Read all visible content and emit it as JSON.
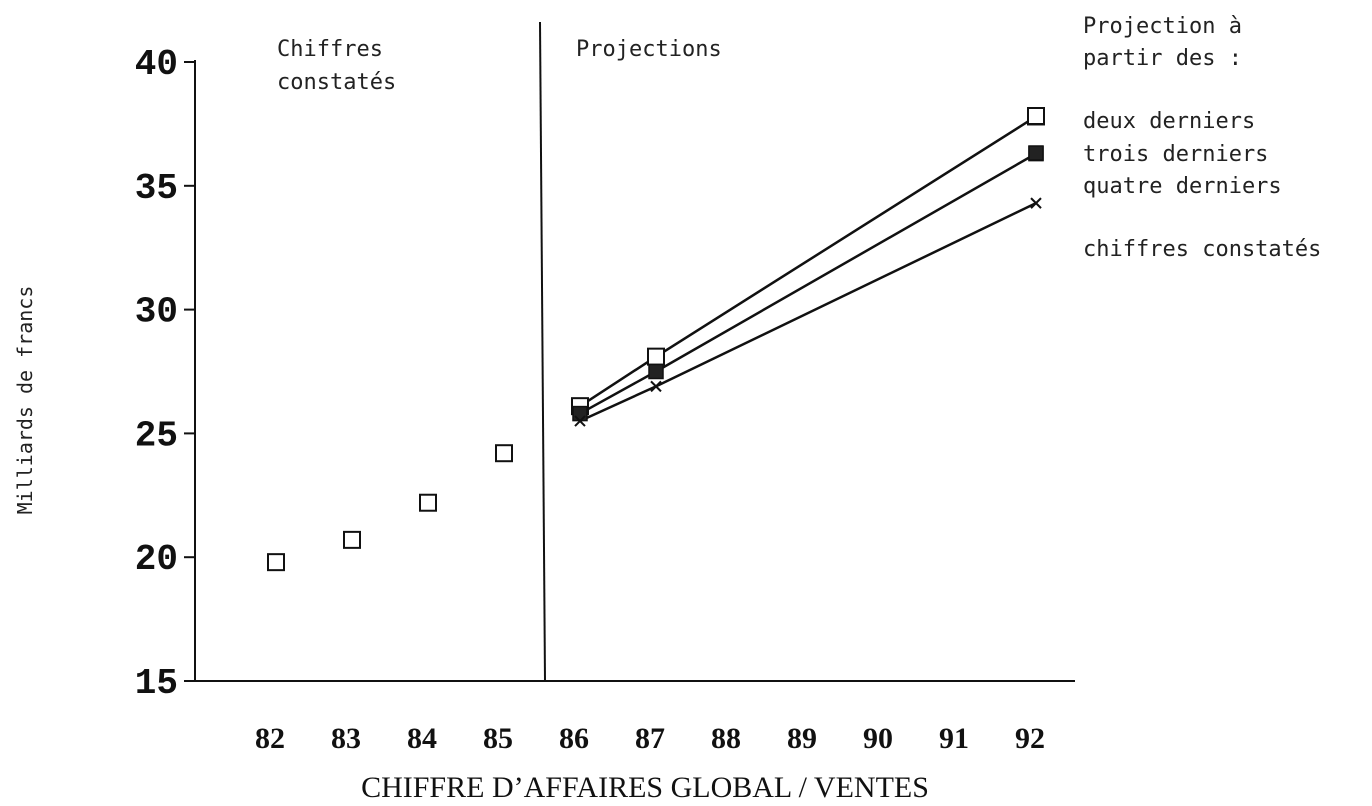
{
  "chart_data": {
    "type": "line",
    "xlabel": "CHIFFRE D’AFFAIRES GLOBAL / VENTES",
    "ylabel": "Milliards de francs",
    "ylim": [
      15,
      40
    ],
    "yticks": [
      "40",
      "35",
      "30",
      "25",
      "20",
      "15"
    ],
    "xticks": [
      "82",
      "83",
      "84",
      "85",
      "86",
      "87",
      "88",
      "89",
      "90",
      "91",
      "92"
    ],
    "grid": false,
    "region_labels": {
      "observed": [
        "Chiffres",
        "constatés"
      ],
      "projected": "Projections"
    },
    "legend": {
      "position": "top-right",
      "title": [
        "Projection à",
        "partir des :"
      ],
      "entries": [
        "deux derniers",
        "trois derniers",
        "quatre derniers",
        "chiffres constatés"
      ]
    },
    "observed": {
      "x": [
        82,
        83,
        84,
        85
      ],
      "values": [
        19.8,
        20.7,
        22.2,
        24.2
      ],
      "marker": "open-square"
    },
    "series": [
      {
        "name": "deux derniers",
        "x": [
          86,
          87,
          92
        ],
        "values": [
          26.1,
          28.1,
          37.8
        ],
        "marker": "open-square"
      },
      {
        "name": "trois derniers",
        "x": [
          86,
          87,
          92
        ],
        "values": [
          25.8,
          27.5,
          36.3
        ],
        "marker": "filled-square"
      },
      {
        "name": "quatre derniers",
        "x": [
          86,
          87,
          92
        ],
        "values": [
          25.5,
          26.9,
          34.3
        ],
        "marker": "cross"
      }
    ]
  }
}
